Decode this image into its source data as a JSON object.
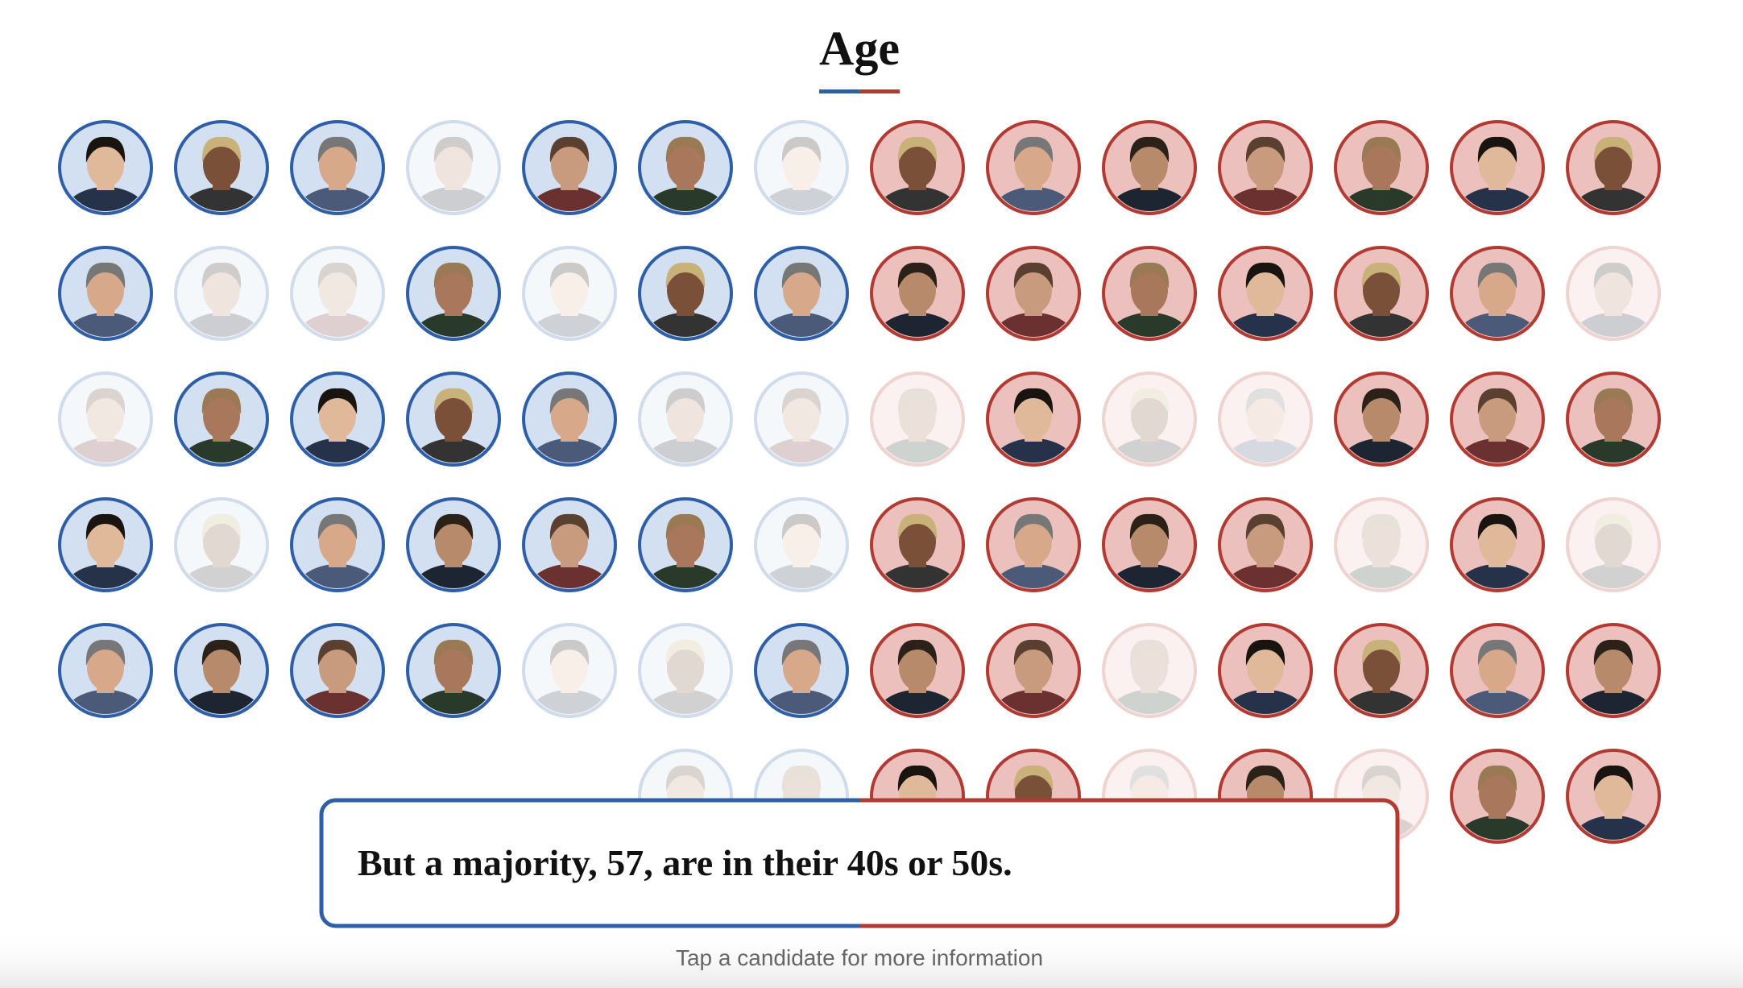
{
  "header": {
    "title": "Age"
  },
  "caption": {
    "text": "But a majority, 57, are in their 40s or 50s."
  },
  "footer": {
    "hint": "Tap a candidate for more information"
  }
}
